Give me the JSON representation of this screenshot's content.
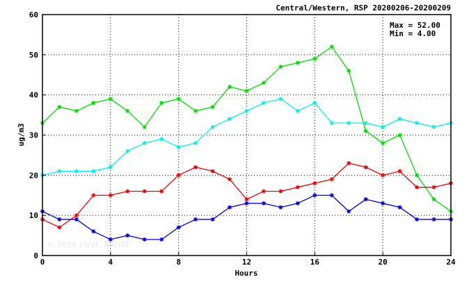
{
  "chart_data": {
    "type": "line",
    "title": "Central/Western, RSP 20200206-20200209",
    "xlabel": "Hours",
    "ylabel": "ug/m3",
    "xlim": [
      0,
      24
    ],
    "ylim": [
      0,
      60
    ],
    "xticks": [
      "0",
      "4",
      "8",
      "12",
      "16",
      "20",
      "24"
    ],
    "yticks": [
      "0",
      "10",
      "20",
      "30",
      "40",
      "50",
      "60"
    ],
    "grid": true,
    "stats": {
      "max": "Max = 52.00",
      "min": "Min =  4.00"
    },
    "watermark": "© 2026  ENVF, HKUST",
    "x": [
      0,
      1,
      2,
      3,
      4,
      5,
      6,
      7,
      8,
      9,
      10,
      11,
      12,
      13,
      14,
      15,
      16,
      17,
      18,
      19,
      20,
      21,
      22,
      23,
      24
    ],
    "series": [
      {
        "color": "#00dd00",
        "values": [
          33,
          37,
          36,
          38,
          39,
          36,
          32,
          38,
          39,
          36,
          37,
          42,
          41,
          43,
          47,
          48,
          49,
          52,
          46,
          31,
          28,
          30,
          20,
          14,
          11
        ]
      },
      {
        "color": "#00eeee",
        "values": [
          20,
          21,
          21,
          21,
          22,
          26,
          28,
          29,
          27,
          28,
          32,
          34,
          36,
          38,
          39,
          36,
          38,
          33,
          33,
          33,
          32,
          34,
          33,
          32,
          33
        ]
      },
      {
        "color": "#ee0000",
        "values": [
          9,
          7,
          10,
          15,
          15,
          16,
          16,
          16,
          20,
          22,
          21,
          19,
          14,
          16,
          16,
          17,
          18,
          19,
          23,
          22,
          20,
          21,
          17,
          17,
          18
        ]
      },
      {
        "color": "#0000dd",
        "values": [
          11,
          9,
          9,
          6,
          4,
          5,
          4,
          4,
          7,
          9,
          9,
          12,
          13,
          13,
          12,
          13,
          15,
          15,
          11,
          14,
          13,
          12,
          9,
          9,
          9
        ]
      }
    ]
  }
}
